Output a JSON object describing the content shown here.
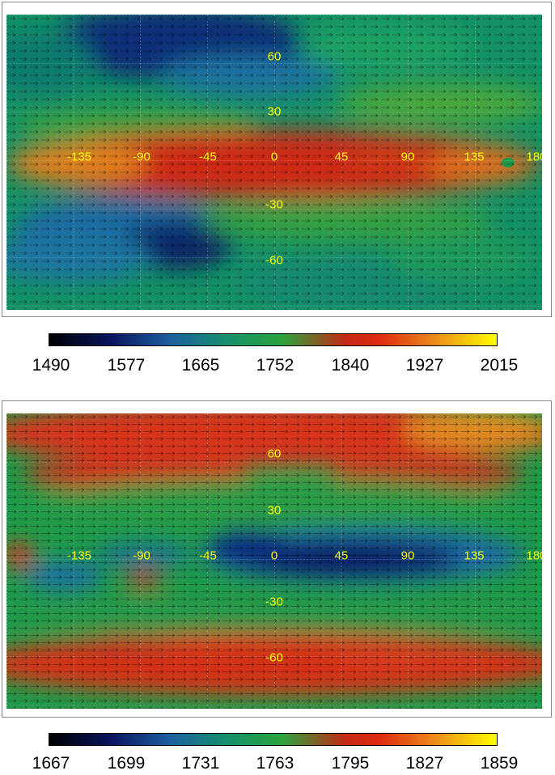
{
  "panels": [
    {
      "id": "top",
      "lon_labels": [
        "-135",
        "-90",
        "-45",
        "0",
        "45",
        "90",
        "135",
        "180"
      ],
      "lon_values": [
        -135,
        -90,
        -45,
        0,
        45,
        90,
        135,
        180
      ],
      "lat_labels": [
        "60",
        "30",
        "-30",
        "-60"
      ],
      "lat_values": [
        60,
        30,
        -30,
        -60
      ],
      "colorbar_ticks": [
        "1490",
        "1577",
        "1665",
        "1752",
        "1840",
        "1927",
        "2015"
      ],
      "color_range": [
        1490,
        2015
      ]
    },
    {
      "id": "bottom",
      "lon_labels": [
        "-135",
        "-90",
        "-45",
        "0",
        "45",
        "90",
        "135",
        "180"
      ],
      "lon_values": [
        -135,
        -90,
        -45,
        0,
        45,
        90,
        135,
        180
      ],
      "lat_labels": [
        "60",
        "30",
        "-30",
        "-60"
      ],
      "lat_values": [
        60,
        30,
        -30,
        -60
      ],
      "colorbar_ticks": [
        "1667",
        "1699",
        "1731",
        "1763",
        "1795",
        "1827",
        "1859"
      ],
      "color_range": [
        1667,
        1859
      ]
    }
  ],
  "colorscale": [
    "#000000",
    "#0a1560",
    "#1d60a0",
    "#14916a",
    "#2aa43c",
    "#c32a14",
    "#e02a10",
    "#ed8a1a",
    "#ffff00"
  ],
  "label_color": "#ffff00"
}
